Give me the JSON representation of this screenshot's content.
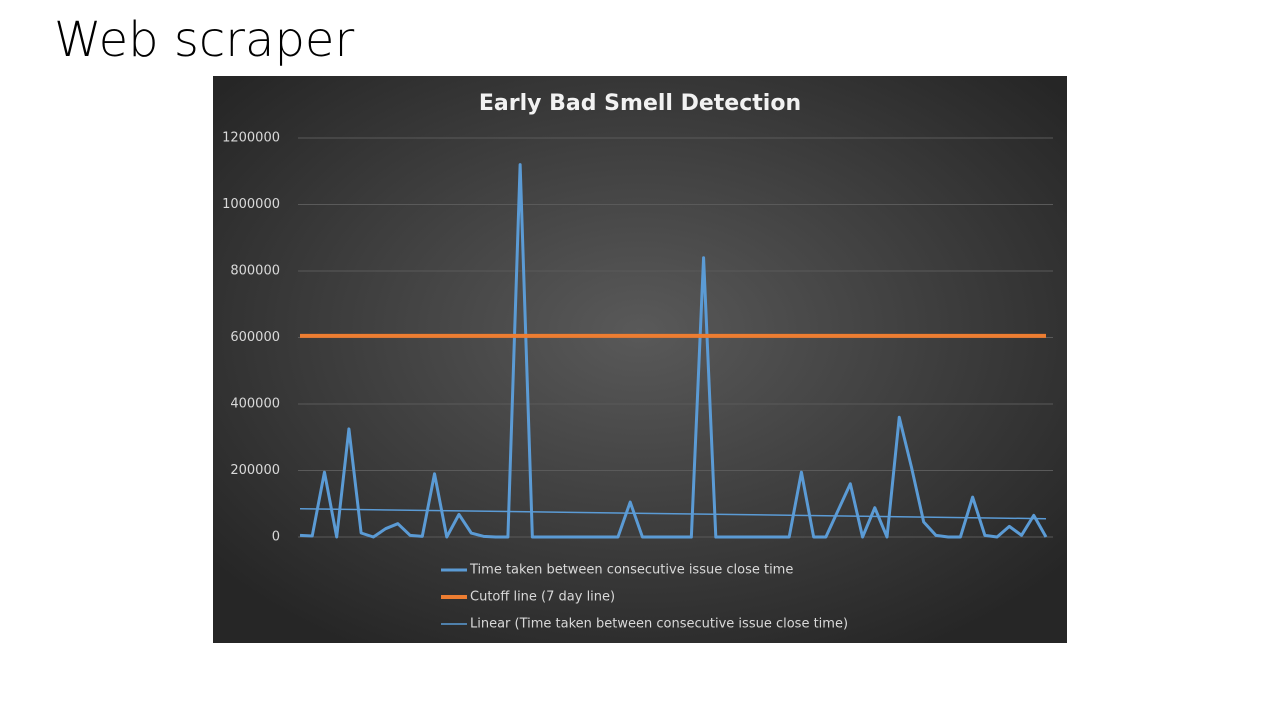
{
  "slide_title": "Web scraper",
  "chart_data": {
    "type": "line",
    "title": "Early Bad Smell Detection",
    "ylim": [
      0,
      1200000
    ],
    "yticks": [
      0,
      200000,
      400000,
      600000,
      800000,
      1000000,
      1200000
    ],
    "grid": true,
    "series": [
      {
        "name": "Time taken between consecutive issue close time",
        "color": "#5b9bd5",
        "values": [
          5000,
          3000,
          195000,
          0,
          325000,
          12000,
          0,
          25000,
          40000,
          5000,
          2000,
          190000,
          0,
          68000,
          12000,
          2000,
          0,
          0,
          1120000,
          0,
          0,
          0,
          0,
          0,
          0,
          0,
          0,
          105000,
          0,
          0,
          0,
          0,
          0,
          840000,
          0,
          0,
          0,
          0,
          0,
          0,
          0,
          195000,
          0,
          0,
          80000,
          160000,
          0,
          88000,
          0,
          360000,
          210000,
          45000,
          5000,
          0,
          0,
          120000,
          5000,
          0,
          32000,
          5000,
          65000,
          0
        ]
      },
      {
        "name": "Cutoff line (7 day line)",
        "color": "#ed7d31",
        "values": [
          604800,
          604800
        ]
      },
      {
        "name": "Linear (Time taken between consecutive issue close time)",
        "color": "#5b9bd5",
        "values": [
          85000,
          55000
        ]
      }
    ]
  }
}
